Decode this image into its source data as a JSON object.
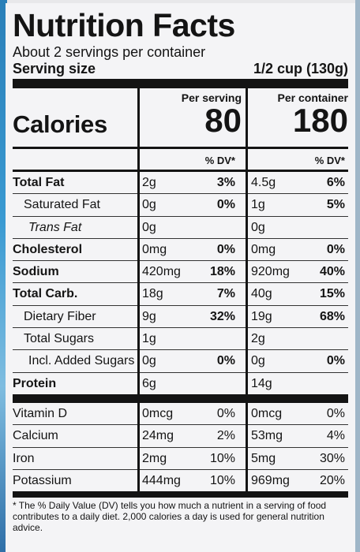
{
  "title": "Nutrition Facts",
  "servings_per_container": "About 2 servings per container",
  "serving_size_label": "Serving size",
  "serving_size_value": "1/2 cup (130g)",
  "calories_label": "Calories",
  "per_serving_label": "Per serving",
  "per_container_label": "Per container",
  "calories_per_serving": "80",
  "calories_per_container": "180",
  "dv_label": "% DV*",
  "nutrients": [
    {
      "name": "Total Fat",
      "serving": "2g",
      "serving_dv": "3%",
      "container": "4.5g",
      "container_dv": "6%"
    },
    {
      "name": "Saturated Fat",
      "serving": "0g",
      "serving_dv": "0%",
      "container": "1g",
      "container_dv": "5%"
    },
    {
      "name": "Trans Fat",
      "serving": "0g",
      "serving_dv": "",
      "container": "0g",
      "container_dv": ""
    },
    {
      "name": "Cholesterol",
      "serving": "0mg",
      "serving_dv": "0%",
      "container": "0mg",
      "container_dv": "0%"
    },
    {
      "name": "Sodium",
      "serving": "420mg",
      "serving_dv": "18%",
      "container": "920mg",
      "container_dv": "40%"
    },
    {
      "name": "Total Carb.",
      "serving": "18g",
      "serving_dv": "7%",
      "container": "40g",
      "container_dv": "15%"
    },
    {
      "name": "Dietary Fiber",
      "serving": "9g",
      "serving_dv": "32%",
      "container": "19g",
      "container_dv": "68%"
    },
    {
      "name": "Total Sugars",
      "serving": "1g",
      "serving_dv": "",
      "container": "2g",
      "container_dv": ""
    },
    {
      "name": "Incl. Added Sugars",
      "serving": "0g",
      "serving_dv": "0%",
      "container": "0g",
      "container_dv": "0%"
    },
    {
      "name": "Protein",
      "serving": "6g",
      "serving_dv": "",
      "container": "14g",
      "container_dv": ""
    }
  ],
  "vitamins": [
    {
      "name": "Vitamin D",
      "serving": "0mcg",
      "serving_dv": "0%",
      "container": "0mcg",
      "container_dv": "0%"
    },
    {
      "name": "Calcium",
      "serving": "24mg",
      "serving_dv": "2%",
      "container": "53mg",
      "container_dv": "4%"
    },
    {
      "name": "Iron",
      "serving": "2mg",
      "serving_dv": "10%",
      "container": "5mg",
      "container_dv": "30%"
    },
    {
      "name": "Potassium",
      "serving": "444mg",
      "serving_dv": "10%",
      "container": "969mg",
      "container_dv": "20%"
    }
  ],
  "footnote": "* The % Daily Value (DV) tells you how much a nutrient in a serving of food contributes to a daily diet. 2,000 calories a day is used for general nutrition advice."
}
